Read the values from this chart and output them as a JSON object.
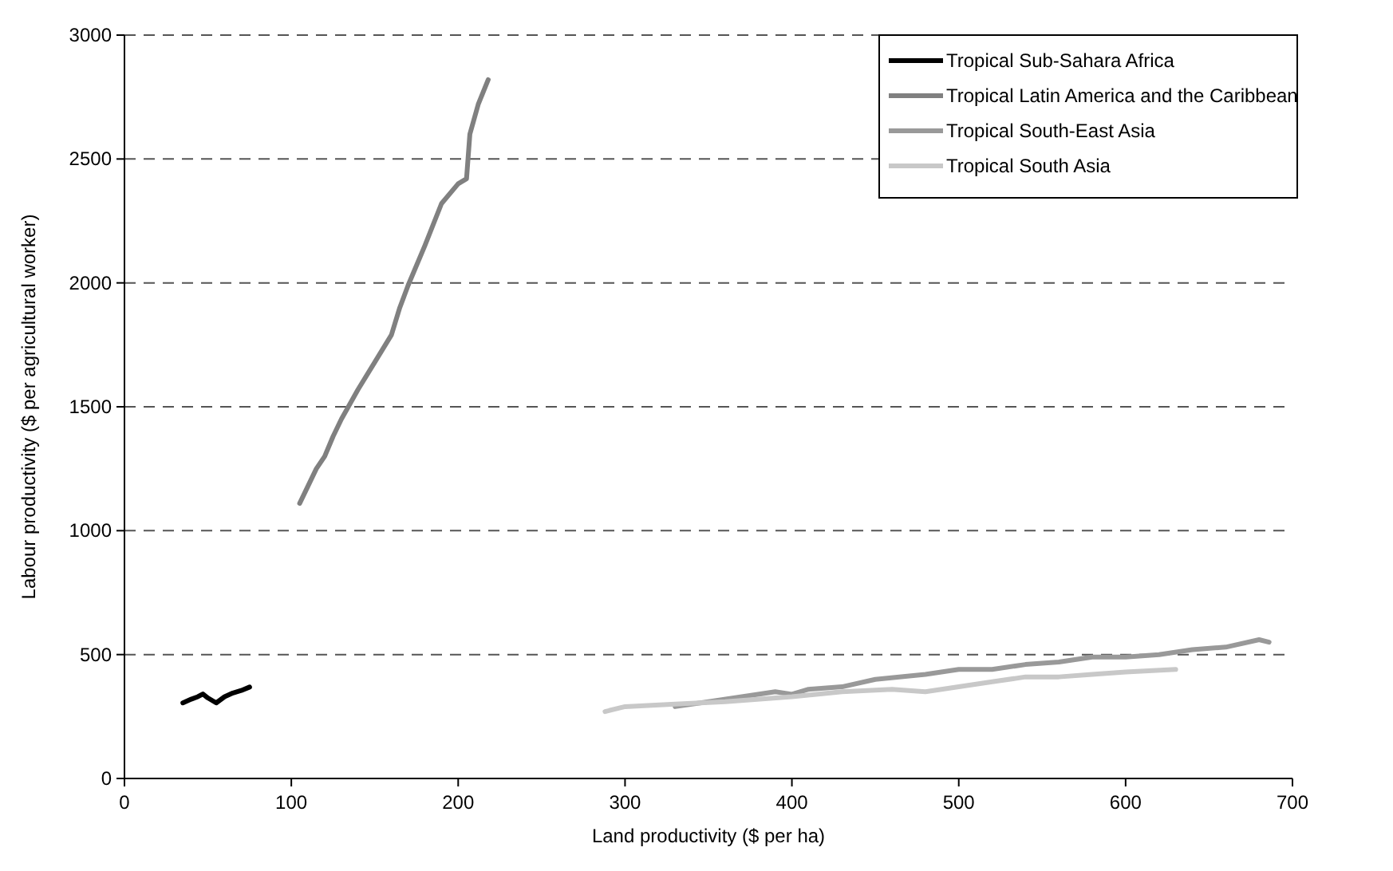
{
  "chart_data": {
    "type": "line",
    "xlabel": "Land productivity ($ per ha)",
    "ylabel": "Labour productivity ($ per agricultural worker)",
    "xlim": [
      0,
      700
    ],
    "xticks": [
      0,
      100,
      200,
      300,
      400,
      500,
      600,
      700
    ],
    "ylim": [
      0,
      3000
    ],
    "yticks": [
      0,
      500,
      1000,
      1500,
      2000,
      2500,
      3000
    ],
    "grid": "y",
    "legend": "top right",
    "marker": "none",
    "line_style": "solid",
    "series": [
      {
        "name": "Tropical Sub-Sahara Africa",
        "color": "#000000",
        "x": [
          35,
          40,
          44,
          47,
          50,
          55,
          60,
          65,
          70,
          75
        ],
        "values": [
          305,
          320,
          330,
          341,
          325,
          305,
          330,
          345,
          355,
          369
        ]
      },
      {
        "name": "Tropical Latin America and the Caribbean",
        "color": "#808080",
        "x": [
          105,
          110,
          115,
          120,
          125,
          130,
          140,
          150,
          160,
          165,
          170,
          180,
          190,
          200,
          205,
          207,
          212,
          218
        ],
        "values": [
          1110,
          1180,
          1250,
          1300,
          1380,
          1450,
          1570,
          1680,
          1790,
          1900,
          1990,
          2150,
          2320,
          2400,
          2420,
          2600,
          2720,
          2820
        ]
      },
      {
        "name": "Tropical South-East Asia",
        "color": "#999999",
        "x": [
          330,
          350,
          370,
          390,
          400,
          410,
          430,
          450,
          480,
          500,
          520,
          540,
          560,
          580,
          600,
          620,
          640,
          660,
          680,
          686
        ],
        "values": [
          290,
          310,
          330,
          350,
          340,
          360,
          370,
          400,
          420,
          440,
          440,
          460,
          470,
          490,
          490,
          500,
          520,
          530,
          560,
          550
        ]
      },
      {
        "name": "Tropical South Asia",
        "color": "#c8c8c8",
        "x": [
          288,
          300,
          330,
          360,
          400,
          430,
          460,
          480,
          500,
          520,
          540,
          560,
          580,
          600,
          630
        ],
        "values": [
          270,
          290,
          300,
          310,
          330,
          350,
          360,
          350,
          370,
          390,
          410,
          410,
          420,
          430,
          440
        ]
      }
    ]
  }
}
